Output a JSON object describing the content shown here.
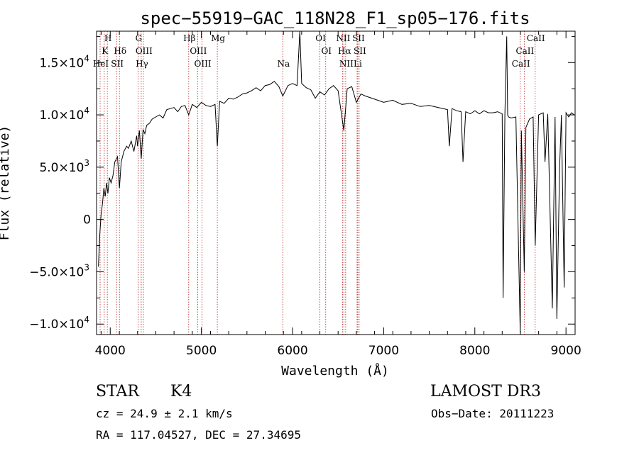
{
  "chart_data": {
    "type": "line",
    "title": "spec−55919−GAC_118N28_F1_sp05−176.fits",
    "xlabel": "Wavelength (Å)",
    "ylabel": "Flux (relative)",
    "xlim": [
      3850,
      9100
    ],
    "ylim": [
      -11000,
      18000
    ],
    "x_ticks": [
      4000,
      5000,
      6000,
      7000,
      8000,
      9000
    ],
    "y_ticks": [
      {
        "value": 15000,
        "mantissa": "1.5×10",
        "exp": "4"
      },
      {
        "value": 10000,
        "mantissa": "1.0×10",
        "exp": "4"
      },
      {
        "value": 5000,
        "mantissa": "5.0×10",
        "exp": "3"
      },
      {
        "value": 0,
        "mantissa": "0",
        "exp": ""
      },
      {
        "value": -5000,
        "mantissa": "−5.0×10",
        "exp": "3"
      },
      {
        "value": -10000,
        "mantissa": "−1.0×10",
        "exp": "4"
      }
    ],
    "series": [
      {
        "x": [
          3870,
          3885,
          3900,
          3915,
          3930,
          3945,
          3960,
          3975,
          3990,
          4010,
          4030,
          4050,
          4080,
          4101,
          4120,
          4150,
          4180,
          4200,
          4230,
          4260,
          4290,
          4300,
          4320,
          4340,
          4360,
          4380,
          4400,
          4430,
          4460,
          4500,
          4540,
          4580,
          4620,
          4660,
          4700,
          4740,
          4780,
          4820,
          4861,
          4900,
          4950,
          5000,
          5050,
          5100,
          5150,
          5175,
          5200,
          5250,
          5300,
          5350,
          5400,
          5450,
          5500,
          5550,
          5600,
          5650,
          5700,
          5750,
          5800,
          5850,
          5893,
          5950,
          6000,
          6050,
          6080,
          6100,
          6150,
          6200,
          6250,
          6300,
          6350,
          6400,
          6450,
          6500,
          6563,
          6600,
          6650,
          6700,
          6750,
          6800,
          6900,
          7000,
          7100,
          7200,
          7300,
          7400,
          7500,
          7600,
          7700,
          7720,
          7750,
          7800,
          7850,
          7870,
          7900,
          7950,
          8000,
          8050,
          8100,
          8150,
          8200,
          8250,
          8300,
          8310,
          8330,
          8350,
          8360,
          8370,
          8400,
          8450,
          8498,
          8510,
          8542,
          8560,
          8600,
          8640,
          8662,
          8700,
          8750,
          8770,
          8800,
          8850,
          8880,
          8900,
          8930,
          8950,
          8980,
          9000,
          9030,
          9060,
          9090
        ],
        "y": [
          -4500,
          -1500,
          500,
          1500,
          3000,
          2200,
          3500,
          2500,
          4000,
          3500,
          4200,
          5500,
          6000,
          3000,
          5500,
          6500,
          7000,
          6800,
          7500,
          6500,
          8000,
          7000,
          8500,
          5800,
          8600,
          8200,
          9000,
          9200,
          9600,
          9800,
          10000,
          9700,
          10500,
          10600,
          10700,
          10300,
          10800,
          10900,
          10000,
          11000,
          10700,
          11200,
          10900,
          10800,
          11000,
          7000,
          11300,
          11100,
          11600,
          11500,
          11700,
          12000,
          12100,
          12300,
          12600,
          12300,
          12800,
          12900,
          13200,
          12700,
          11800,
          12800,
          13000,
          12800,
          18000,
          13000,
          12600,
          12400,
          11600,
          12200,
          11900,
          12500,
          12800,
          12300,
          8500,
          12500,
          12700,
          11200,
          12000,
          11800,
          11500,
          11200,
          11400,
          11000,
          11100,
          10800,
          10900,
          10700,
          10500,
          7000,
          10600,
          10400,
          10300,
          5500,
          10300,
          10100,
          10400,
          10100,
          10400,
          10200,
          10200,
          10300,
          10100,
          -7500,
          10000,
          17500,
          10000,
          9800,
          9700,
          9800,
          -10800,
          8500,
          -5000,
          8800,
          9600,
          9800,
          -2500,
          10000,
          10200,
          5500,
          10100,
          -8500,
          9800,
          -9500,
          5000,
          10000,
          -6500,
          10200,
          9800,
          10200,
          10000
        ]
      }
    ],
    "lines": [
      {
        "name": "K",
        "wl": 3934
      },
      {
        "name": "H",
        "wl": 3968
      },
      {
        "name": "HeI",
        "wl": 3889
      },
      {
        "name": "Hδ",
        "wl": 4101
      },
      {
        "name": "SII",
        "wl": 4069
      },
      {
        "name": "G",
        "wl": 4305
      },
      {
        "name": "OIII",
        "wl": 4363
      },
      {
        "name": "Hγ",
        "wl": 4340
      },
      {
        "name": "Hβ",
        "wl": 4861
      },
      {
        "name": "OIII",
        "wl": 4959
      },
      {
        "name": "OIII",
        "wl": 5007
      },
      {
        "name": "Mg",
        "wl": 5175
      },
      {
        "name": "Na",
        "wl": 5893
      },
      {
        "name": "OI",
        "wl": 6300
      },
      {
        "name": "OI",
        "wl": 6364
      },
      {
        "name": "NII",
        "wl": 6548
      },
      {
        "name": "Hα",
        "wl": 6563
      },
      {
        "name": "NII",
        "wl": 6583
      },
      {
        "name": "SII",
        "wl": 6716
      },
      {
        "name": "SII",
        "wl": 6731
      },
      {
        "name": "Li",
        "wl": 6708
      },
      {
        "name": "CaII",
        "wl": 8498
      },
      {
        "name": "CaII",
        "wl": 8542
      },
      {
        "name": "CaII",
        "wl": 8662
      }
    ],
    "grid": false
  },
  "info": {
    "class": "STAR",
    "subclass": "K4",
    "survey": "LAMOST DR3",
    "cz": "cz = 24.9 ± 2.1 km/s",
    "obs_date": "Obs−Date: 20111223",
    "radec": "RA = 117.04527, DEC =  27.34695"
  },
  "colors": {
    "line_markers": "#b22222",
    "spectrum": "#000000"
  }
}
